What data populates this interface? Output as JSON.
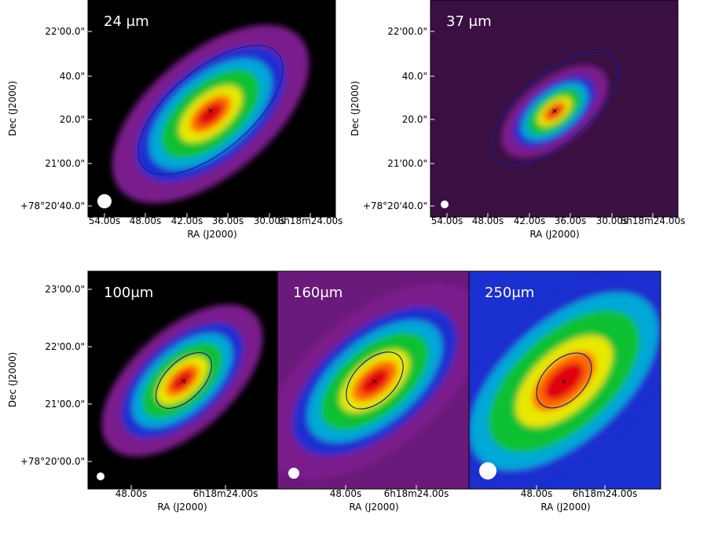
{
  "panels": [
    {
      "label": "24 μm",
      "y_tick_labels": [
        "22'00.0\"",
        "40.0\"",
        "20.0\"",
        "21'00.0\"",
        "+78°20'40.0\""
      ],
      "x_tick_labels": [
        "54.00s",
        "48.00s",
        "42.00s",
        "36.00s",
        "30.00s",
        "6h18m24.00s"
      ],
      "x_label": "RA (J2000)",
      "y_label": "Dec (J2000)"
    },
    {
      "label": "37 μm",
      "y_tick_labels": [
        "22'00.0\"",
        "40.0\"",
        "20.0\"",
        "21'00.0\"",
        "+78°20'40.0\""
      ],
      "x_tick_labels": [
        "54.00s",
        "48.00s",
        "42.00s",
        "36.00s",
        "30.00s",
        "6h18m24.00s"
      ],
      "x_label": "RA (J2000)",
      "y_label": "Dec (J2000)"
    },
    {
      "label": "100μm",
      "y_tick_labels": [
        "23'00.0\"",
        "22'00.0\"",
        "21'00.0\"",
        "+78°20'00.0\""
      ],
      "x_tick_labels": [
        "48.00s",
        "6h18m24.00s"
      ],
      "x_label": "RA (J2000)",
      "y_label": "Dec (J2000)"
    },
    {
      "label": "160μm",
      "x_tick_labels": [
        "48.00s",
        "6h18m24.00s"
      ],
      "x_label": "RA (J2000)"
    },
    {
      "label": "250μm",
      "x_tick_labels": [
        "48.00s",
        "6h18m24.00s"
      ],
      "x_label": "RA (J2000)"
    }
  ]
}
